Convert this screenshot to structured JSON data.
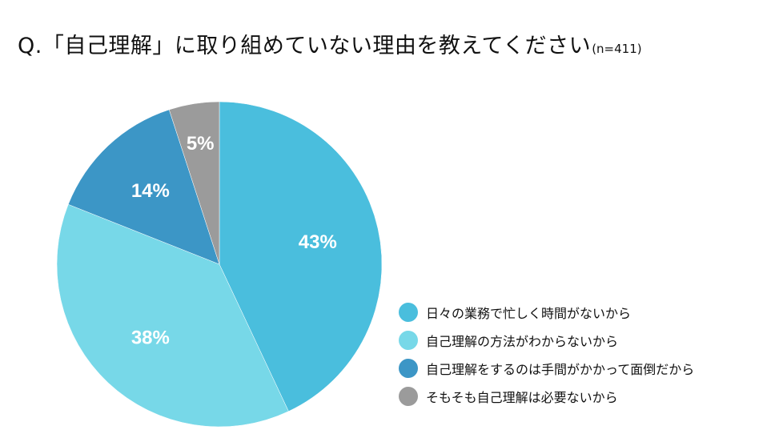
{
  "title": {
    "text": "Q.「自己理解」に取り組めていない理由を教えてください",
    "note": "(n=411)"
  },
  "chart_data": {
    "type": "pie",
    "title": "Q.「自己理解」に取り組めていない理由を教えてください(n=411)",
    "slices": [
      {
        "label": "日々の業務で忙しく時間がないから",
        "value": 43,
        "value_label": "43%",
        "color": "#4abedd"
      },
      {
        "label": "自己理解の方法がわからないから",
        "value": 38,
        "value_label": "38%",
        "color": "#77d8e8"
      },
      {
        "label": "自己理解をするのは手間がかかって面倒だから",
        "value": 14,
        "value_label": "14%",
        "color": "#3c96c6"
      },
      {
        "label": "そもそも自己理解は必要ないから",
        "value": 5,
        "value_label": "5%",
        "color": "#9b9b9b"
      }
    ],
    "start_angle": "12 o'clock",
    "direction": "clockwise",
    "legend_position": "right-bottom"
  }
}
